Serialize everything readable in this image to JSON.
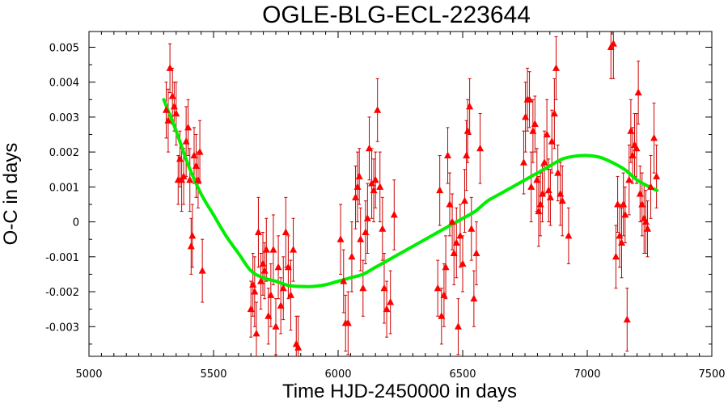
{
  "chart_data": {
    "type": "scatter",
    "title": "OGLE-BLG-ECL-223644",
    "xlabel": "Time HJD-2450000 in days",
    "ylabel": "O-C in days",
    "xlim": [
      5000,
      7500
    ],
    "ylim": [
      -0.00385,
      0.00545
    ],
    "x_ticks": [
      5000,
      5500,
      6000,
      6500,
      7000,
      7500
    ],
    "x_tick_labels": [
      "5000",
      "5500",
      "6000",
      "6500",
      "7000",
      "7500"
    ],
    "y_ticks": [
      -0.003,
      -0.002,
      -0.001,
      0,
      0.001,
      0.002,
      0.003,
      0.004,
      0.005
    ],
    "y_tick_labels": [
      "-0.003",
      "-0.002",
      "-0.001",
      "0",
      "0.001",
      "0.002",
      "0.003",
      "0.004",
      "0.005"
    ],
    "grid": false,
    "colors": {
      "points": "#ff0000",
      "error_bars": "#cc0000",
      "fit": "#00ee00",
      "axes": "#000000"
    },
    "series": [
      {
        "marker": "triangle",
        "points": [
          {
            "x": 5310,
            "y": 0.0032,
            "err": 0.0008
          },
          {
            "x": 5318,
            "y": 0.0029,
            "err": 0.0009
          },
          {
            "x": 5325,
            "y": 0.0044,
            "err": 0.0007
          },
          {
            "x": 5335,
            "y": 0.0036,
            "err": 0.0008
          },
          {
            "x": 5342,
            "y": 0.0033,
            "err": 0.0007
          },
          {
            "x": 5350,
            "y": 0.0031,
            "err": 0.0009
          },
          {
            "x": 5358,
            "y": 0.0012,
            "err": 0.0007
          },
          {
            "x": 5365,
            "y": 0.0018,
            "err": 0.0008
          },
          {
            "x": 5372,
            "y": 0.0012,
            "err": 0.0009
          },
          {
            "x": 5380,
            "y": 0.0013,
            "err": 0.0008
          },
          {
            "x": 5390,
            "y": 0.0023,
            "err": 0.001
          },
          {
            "x": 5398,
            "y": 0.0027,
            "err": 0.0008
          },
          {
            "x": 5405,
            "y": 0.0012,
            "err": 0.0009
          },
          {
            "x": 5410,
            "y": -0.0007,
            "err": 0.0008
          },
          {
            "x": 5415,
            "y": -0.0004,
            "err": 0.0009
          },
          {
            "x": 5422,
            "y": 0.0019,
            "err": 0.0008
          },
          {
            "x": 5430,
            "y": 0.0016,
            "err": 0.0009
          },
          {
            "x": 5438,
            "y": 0.0012,
            "err": 0.0008
          },
          {
            "x": 5445,
            "y": 0.002,
            "err": 0.0009
          },
          {
            "x": 5455,
            "y": -0.0014,
            "err": 0.0009
          },
          {
            "x": 5650,
            "y": -0.0025,
            "err": 0.0008
          },
          {
            "x": 5658,
            "y": -0.0018,
            "err": 0.0009
          },
          {
            "x": 5665,
            "y": -0.002,
            "err": 0.001
          },
          {
            "x": 5672,
            "y": -0.0032,
            "err": 0.0009
          },
          {
            "x": 5680,
            "y": -0.0003,
            "err": 0.001
          },
          {
            "x": 5690,
            "y": -0.0017,
            "err": 0.0008
          },
          {
            "x": 5698,
            "y": -0.0012,
            "err": 0.0009
          },
          {
            "x": 5705,
            "y": -0.0014,
            "err": 0.0008
          },
          {
            "x": 5712,
            "y": -0.0008,
            "err": 0.0009
          },
          {
            "x": 5720,
            "y": -0.0027,
            "err": 0.0008
          },
          {
            "x": 5730,
            "y": -0.0021,
            "err": 0.0009
          },
          {
            "x": 5740,
            "y": -0.0008,
            "err": 0.001
          },
          {
            "x": 5750,
            "y": -0.003,
            "err": 0.0008
          },
          {
            "x": 5760,
            "y": -0.0013,
            "err": 0.0009
          },
          {
            "x": 5770,
            "y": -0.0024,
            "err": 0.0008
          },
          {
            "x": 5780,
            "y": -0.0019,
            "err": 0.0009
          },
          {
            "x": 5790,
            "y": -0.0003,
            "err": 0.001
          },
          {
            "x": 5800,
            "y": -0.0013,
            "err": 0.0009
          },
          {
            "x": 5810,
            "y": -0.0021,
            "err": 0.001
          },
          {
            "x": 5820,
            "y": -0.0008,
            "err": 0.0009
          },
          {
            "x": 5832,
            "y": -0.0035,
            "err": 0.0008
          },
          {
            "x": 5840,
            "y": -0.0036,
            "err": 0.0009
          },
          {
            "x": 6010,
            "y": -0.0005,
            "err": 0.001
          },
          {
            "x": 6022,
            "y": -0.0017,
            "err": 0.0009
          },
          {
            "x": 6030,
            "y": -0.0029,
            "err": 0.0008
          },
          {
            "x": 6040,
            "y": -0.0029,
            "err": 0.0009
          },
          {
            "x": 6055,
            "y": -0.001,
            "err": 0.001
          },
          {
            "x": 6070,
            "y": 0.0007,
            "err": 0.0009
          },
          {
            "x": 6078,
            "y": 0.001,
            "err": 0.001
          },
          {
            "x": 6085,
            "y": 0.0013,
            "err": 0.0008
          },
          {
            "x": 6090,
            "y": -0.0005,
            "err": 0.0009
          },
          {
            "x": 6100,
            "y": -0.0019,
            "err": 0.0008
          },
          {
            "x": 6110,
            "y": -0.0003,
            "err": 0.0009
          },
          {
            "x": 6118,
            "y": 0.0001,
            "err": 0.001
          },
          {
            "x": 6125,
            "y": 0.0021,
            "err": 0.0009
          },
          {
            "x": 6135,
            "y": 0.0011,
            "err": 0.001
          },
          {
            "x": 6143,
            "y": 0.0009,
            "err": 0.0009
          },
          {
            "x": 6150,
            "y": 0.0012,
            "err": 0.0008
          },
          {
            "x": 6158,
            "y": 0.0032,
            "err": 0.0009
          },
          {
            "x": 6168,
            "y": 0.001,
            "err": 0.001
          },
          {
            "x": 6178,
            "y": -0.0002,
            "err": 0.0009
          },
          {
            "x": 6185,
            "y": -0.0019,
            "err": 0.001
          },
          {
            "x": 6195,
            "y": -0.0025,
            "err": 0.0008
          },
          {
            "x": 6210,
            "y": -0.0023,
            "err": 0.0009
          },
          {
            "x": 6225,
            "y": 0.0002,
            "err": 0.001
          },
          {
            "x": 6400,
            "y": -0.0019,
            "err": 0.0008
          },
          {
            "x": 6408,
            "y": 0.0009,
            "err": 0.001
          },
          {
            "x": 6415,
            "y": -0.0027,
            "err": 0.0008
          },
          {
            "x": 6425,
            "y": -0.0021,
            "err": 0.0009
          },
          {
            "x": 6432,
            "y": -0.0013,
            "err": 0.0009
          },
          {
            "x": 6440,
            "y": 0.0019,
            "err": 0.0008
          },
          {
            "x": 6448,
            "y": 0.0005,
            "err": 0.0009
          },
          {
            "x": 6458,
            "y": 0.0,
            "err": 0.0008
          },
          {
            "x": 6465,
            "y": -0.0009,
            "err": 0.0009
          },
          {
            "x": 6475,
            "y": -0.0006,
            "err": 0.001
          },
          {
            "x": 6482,
            "y": -0.003,
            "err": 0.0008
          },
          {
            "x": 6490,
            "y": -0.0004,
            "err": 0.0009
          },
          {
            "x": 6500,
            "y": -0.0012,
            "err": 0.0008
          },
          {
            "x": 6508,
            "y": 0.0006,
            "err": 0.0009
          },
          {
            "x": 6515,
            "y": 0.0019,
            "err": 0.001
          },
          {
            "x": 6520,
            "y": 0.0026,
            "err": 0.0009
          },
          {
            "x": 6528,
            "y": 0.0033,
            "err": 0.0008
          },
          {
            "x": 6535,
            "y": -0.0002,
            "err": 0.0009
          },
          {
            "x": 6545,
            "y": -0.0022,
            "err": 0.0008
          },
          {
            "x": 6555,
            "y": -0.0009,
            "err": 0.0009
          },
          {
            "x": 6570,
            "y": 0.0021,
            "err": 0.001
          },
          {
            "x": 6745,
            "y": 0.0017,
            "err": 0.0009
          },
          {
            "x": 6752,
            "y": 0.003,
            "err": 0.001
          },
          {
            "x": 6760,
            "y": 0.0035,
            "err": 0.0009
          },
          {
            "x": 6768,
            "y": 0.0035,
            "err": 0.0008
          },
          {
            "x": 6775,
            "y": 0.001,
            "err": 0.001
          },
          {
            "x": 6782,
            "y": 0.0026,
            "err": 0.0009
          },
          {
            "x": 6790,
            "y": 0.0028,
            "err": 0.0008
          },
          {
            "x": 6798,
            "y": 0.0012,
            "err": 0.0009
          },
          {
            "x": 6805,
            "y": 0.0003,
            "err": 0.001
          },
          {
            "x": 6812,
            "y": 0.0005,
            "err": 0.0009
          },
          {
            "x": 6820,
            "y": 0.0008,
            "err": 0.0008
          },
          {
            "x": 6828,
            "y": 0.0017,
            "err": 0.0009
          },
          {
            "x": 6838,
            "y": 0.0025,
            "err": 0.001
          },
          {
            "x": 6845,
            "y": 0.0009,
            "err": 0.0009
          },
          {
            "x": 6852,
            "y": 0.0007,
            "err": 0.0008
          },
          {
            "x": 6858,
            "y": 0.0023,
            "err": 0.0009
          },
          {
            "x": 6868,
            "y": 0.0031,
            "err": 0.001
          },
          {
            "x": 6875,
            "y": 0.0044,
            "err": 0.0009
          },
          {
            "x": 6882,
            "y": 0.0014,
            "err": 0.0008
          },
          {
            "x": 6892,
            "y": 0.0008,
            "err": 0.0009
          },
          {
            "x": 6900,
            "y": 0.0006,
            "err": 0.001
          },
          {
            "x": 6925,
            "y": -0.0004,
            "err": 0.0008
          },
          {
            "x": 7095,
            "y": 0.005,
            "err": 0.0009
          },
          {
            "x": 7105,
            "y": 0.0051,
            "err": 0.001
          },
          {
            "x": 7115,
            "y": -0.001,
            "err": 0.0009
          },
          {
            "x": 7122,
            "y": 0.0005,
            "err": 0.0008
          },
          {
            "x": 7130,
            "y": -0.0004,
            "err": 0.0009
          },
          {
            "x": 7138,
            "y": -0.0006,
            "err": 0.001
          },
          {
            "x": 7145,
            "y": 0.0005,
            "err": 0.0009
          },
          {
            "x": 7152,
            "y": 0.0002,
            "err": 0.0008
          },
          {
            "x": 7160,
            "y": -0.0028,
            "err": 0.0009
          },
          {
            "x": 7168,
            "y": 0.0012,
            "err": 0.001
          },
          {
            "x": 7175,
            "y": 0.0026,
            "err": 0.0009
          },
          {
            "x": 7182,
            "y": 0.0019,
            "err": 0.0008
          },
          {
            "x": 7190,
            "y": 0.0022,
            "err": 0.0009
          },
          {
            "x": 7198,
            "y": 0.0021,
            "err": 0.001
          },
          {
            "x": 7205,
            "y": 0.0037,
            "err": 0.0009
          },
          {
            "x": 7212,
            "y": 0.0008,
            "err": 0.0008
          },
          {
            "x": 7220,
            "y": 0.0005,
            "err": 0.0009
          },
          {
            "x": 7228,
            "y": 0.0001,
            "err": 0.001
          },
          {
            "x": 7235,
            "y": 0.0,
            "err": 0.0009
          },
          {
            "x": 7242,
            "y": -0.0002,
            "err": 0.0008
          },
          {
            "x": 7255,
            "y": 0.001,
            "err": 0.0009
          },
          {
            "x": 7268,
            "y": 0.0024,
            "err": 0.001
          },
          {
            "x": 7278,
            "y": 0.0013,
            "err": 0.0009
          }
        ]
      },
      {
        "type": "line",
        "curve": [
          {
            "x": 5300,
            "y": 0.0035
          },
          {
            "x": 5350,
            "y": 0.0026
          },
          {
            "x": 5400,
            "y": 0.0016
          },
          {
            "x": 5450,
            "y": 0.0008
          },
          {
            "x": 5500,
            "y": 0.0002
          },
          {
            "x": 5550,
            "y": -0.0004
          },
          {
            "x": 5600,
            "y": -0.0009
          },
          {
            "x": 5650,
            "y": -0.0014
          },
          {
            "x": 5700,
            "y": -0.0016
          },
          {
            "x": 5750,
            "y": -0.0017
          },
          {
            "x": 5800,
            "y": -0.00182
          },
          {
            "x": 5850,
            "y": -0.00185
          },
          {
            "x": 5900,
            "y": -0.00185
          },
          {
            "x": 5950,
            "y": -0.0018
          },
          {
            "x": 6000,
            "y": -0.0017
          },
          {
            "x": 6050,
            "y": -0.0016
          },
          {
            "x": 6100,
            "y": -0.0015
          },
          {
            "x": 6150,
            "y": -0.0013
          },
          {
            "x": 6200,
            "y": -0.0011
          },
          {
            "x": 6250,
            "y": -0.0009
          },
          {
            "x": 6300,
            "y": -0.0007
          },
          {
            "x": 6350,
            "y": -0.0005
          },
          {
            "x": 6400,
            "y": -0.0003
          },
          {
            "x": 6450,
            "y": -0.0001
          },
          {
            "x": 6500,
            "y": 0.0001
          },
          {
            "x": 6550,
            "y": 0.0003
          },
          {
            "x": 6600,
            "y": 0.0006
          },
          {
            "x": 6650,
            "y": 0.0008
          },
          {
            "x": 6700,
            "y": 0.001
          },
          {
            "x": 6750,
            "y": 0.0012
          },
          {
            "x": 6800,
            "y": 0.0014
          },
          {
            "x": 6850,
            "y": 0.0016
          },
          {
            "x": 6900,
            "y": 0.0018
          },
          {
            "x": 6950,
            "y": 0.00188
          },
          {
            "x": 7000,
            "y": 0.0019
          },
          {
            "x": 7050,
            "y": 0.00185
          },
          {
            "x": 7100,
            "y": 0.0017
          },
          {
            "x": 7150,
            "y": 0.0015
          },
          {
            "x": 7200,
            "y": 0.0012
          },
          {
            "x": 7250,
            "y": 0.001
          },
          {
            "x": 7280,
            "y": 0.0009
          }
        ]
      }
    ]
  }
}
